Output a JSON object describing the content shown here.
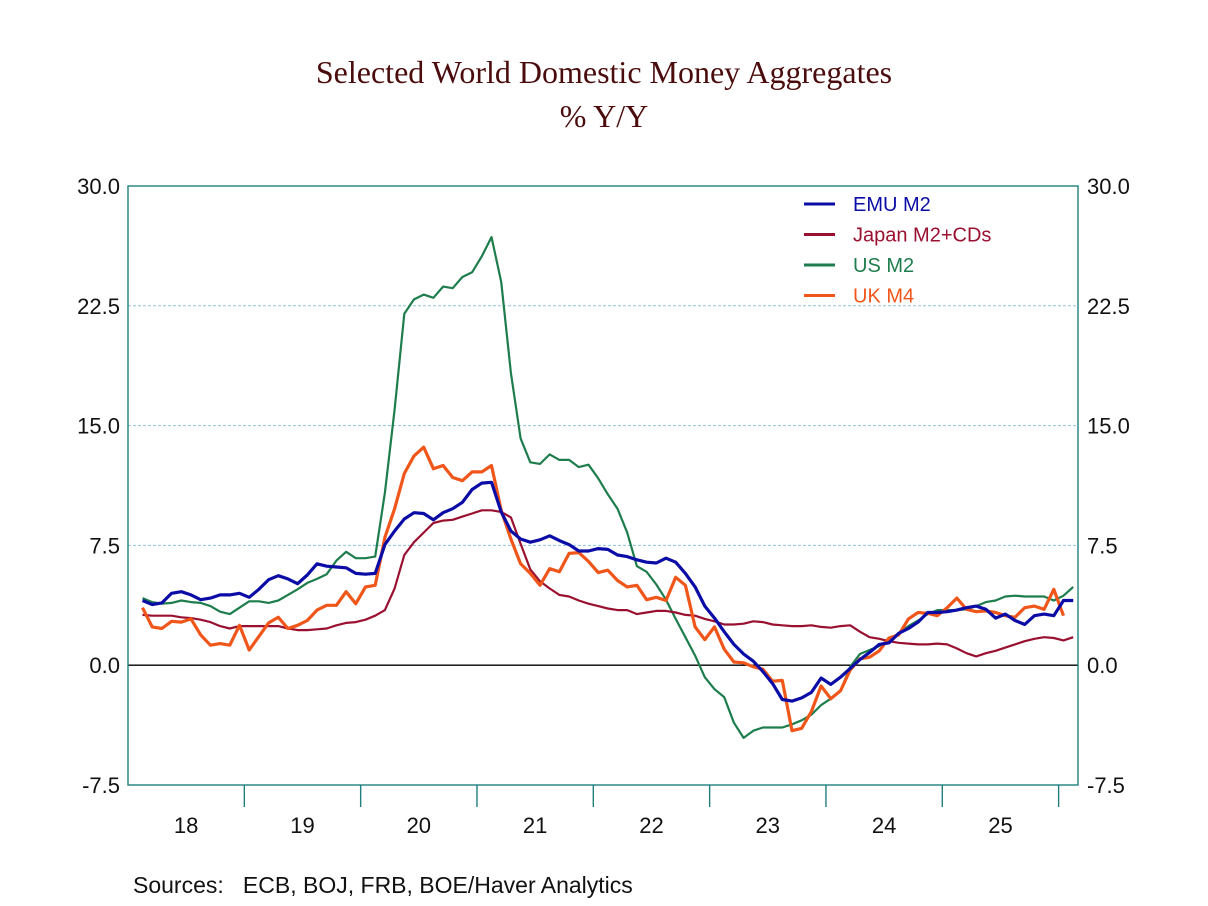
{
  "chart_data": {
    "type": "line",
    "title": "Selected World Domestic Money Aggregates",
    "subtitle": "% Y/Y",
    "xlabel": "",
    "ylabel": "",
    "frequency": "monthly",
    "x_start": "2018-02",
    "x_range": [
      "2018-01",
      "2026-02"
    ],
    "x_tick_labels": [
      "18",
      "19",
      "20",
      "21",
      "22",
      "23",
      "24",
      "25"
    ],
    "ylim": [
      -7.5,
      30.0
    ],
    "y_ticks": [
      "30.0",
      "22.5",
      "15.0",
      "7.5",
      "0.0",
      "-7.5"
    ],
    "y_axis_sides": "left and right",
    "grid": "horizontal dashed",
    "legend_position": "top-right",
    "source": "Sources:   ECB, BOJ, FRB, BOE/Haver Analytics",
    "series": [
      {
        "name": "EMU M2",
        "color": "#0b0ca6",
        "values": [
          4.05,
          3.8,
          3.9,
          4.5,
          4.6,
          4.4,
          4.1,
          4.2,
          4.4,
          4.4,
          4.5,
          4.25,
          4.75,
          5.35,
          5.6,
          5.4,
          5.1,
          5.65,
          6.35,
          6.2,
          6.15,
          6.1,
          5.75,
          5.7,
          5.75,
          7.55,
          8.4,
          9.15,
          9.55,
          9.5,
          9.1,
          9.55,
          9.8,
          10.2,
          11.0,
          11.4,
          11.45,
          9.6,
          8.4,
          7.9,
          7.7,
          7.85,
          8.1,
          7.8,
          7.55,
          7.15,
          7.15,
          7.3,
          7.25,
          6.9,
          6.8,
          6.6,
          6.45,
          6.4,
          6.7,
          6.45,
          5.75,
          4.9,
          3.7,
          2.95,
          2.1,
          1.3,
          0.7,
          0.25,
          -0.4,
          -1.15,
          -2.15,
          -2.25,
          -2.05,
          -1.7,
          -0.8,
          -1.2,
          -0.75,
          -0.2,
          0.35,
          0.8,
          1.3,
          1.4,
          2.0,
          2.3,
          2.7,
          3.3,
          3.3,
          3.35,
          3.45,
          3.6,
          3.7,
          3.5,
          2.95,
          3.2,
          2.8,
          2.55,
          3.1,
          3.2,
          3.1,
          4.05,
          4.05
        ]
      },
      {
        "name": "Japan M2+CDs",
        "color": "#9a1030",
        "values": [
          3.15,
          3.1,
          3.1,
          3.1,
          3.0,
          2.95,
          2.85,
          2.7,
          2.45,
          2.3,
          2.45,
          2.45,
          2.45,
          2.45,
          2.45,
          2.3,
          2.2,
          2.2,
          2.25,
          2.3,
          2.5,
          2.65,
          2.7,
          2.85,
          3.1,
          3.45,
          4.8,
          6.9,
          7.7,
          8.3,
          8.9,
          9.05,
          9.1,
          9.3,
          9.5,
          9.7,
          9.7,
          9.6,
          9.25,
          7.6,
          6.0,
          5.25,
          4.8,
          4.4,
          4.3,
          4.05,
          3.85,
          3.7,
          3.55,
          3.45,
          3.45,
          3.2,
          3.3,
          3.4,
          3.4,
          3.3,
          3.15,
          3.1,
          2.9,
          2.75,
          2.55,
          2.55,
          2.6,
          2.75,
          2.7,
          2.55,
          2.5,
          2.45,
          2.45,
          2.5,
          2.4,
          2.35,
          2.45,
          2.5,
          2.1,
          1.75,
          1.65,
          1.5,
          1.4,
          1.35,
          1.3,
          1.3,
          1.35,
          1.3,
          1.05,
          0.75,
          0.55,
          0.75,
          0.9,
          1.1,
          1.3,
          1.5,
          1.65,
          1.75,
          1.7,
          1.55,
          1.75
        ]
      },
      {
        "name": "US M2",
        "color": "#1e7d4c",
        "values": [
          4.2,
          3.95,
          3.85,
          3.9,
          4.05,
          3.95,
          3.9,
          3.7,
          3.35,
          3.2,
          3.6,
          4.0,
          4.0,
          3.9,
          4.05,
          4.4,
          4.75,
          5.15,
          5.4,
          5.7,
          6.55,
          7.1,
          6.7,
          6.7,
          6.8,
          10.8,
          16.0,
          22.0,
          22.9,
          23.2,
          23.0,
          23.7,
          23.6,
          24.3,
          24.6,
          25.6,
          26.8,
          24.0,
          18.3,
          14.2,
          12.7,
          12.6,
          13.2,
          12.85,
          12.85,
          12.4,
          12.55,
          11.7,
          10.7,
          9.8,
          8.3,
          6.2,
          5.85,
          5.05,
          4.1,
          2.9,
          1.75,
          0.6,
          -0.75,
          -1.5,
          -2.0,
          -3.6,
          -4.55,
          -4.1,
          -3.9,
          -3.9,
          -3.9,
          -3.7,
          -3.45,
          -3.1,
          -2.5,
          -2.1,
          -1.6,
          -0.1,
          0.7,
          0.95,
          1.2,
          1.6,
          2.0,
          2.45,
          2.8,
          3.2,
          3.45,
          3.45,
          3.45,
          3.5,
          3.7,
          3.95,
          4.05,
          4.3,
          4.35,
          4.3,
          4.3,
          4.3,
          4.05,
          4.35,
          4.9
        ]
      },
      {
        "name": "UK M4",
        "color": "#f0561a",
        "values": [
          3.6,
          2.4,
          2.3,
          2.75,
          2.7,
          2.9,
          1.9,
          1.25,
          1.35,
          1.25,
          2.5,
          0.95,
          1.8,
          2.65,
          3.0,
          2.3,
          2.5,
          2.8,
          3.45,
          3.75,
          3.75,
          4.6,
          3.85,
          4.9,
          5.0,
          8.0,
          9.8,
          12.0,
          13.1,
          13.65,
          12.3,
          12.5,
          11.75,
          11.55,
          12.1,
          12.1,
          12.5,
          9.7,
          7.9,
          6.35,
          5.75,
          5.0,
          6.05,
          5.85,
          7.0,
          7.05,
          6.5,
          5.8,
          5.95,
          5.3,
          4.9,
          5.0,
          4.1,
          4.25,
          4.05,
          5.5,
          5.0,
          2.4,
          1.6,
          2.4,
          1.0,
          0.2,
          0.15,
          -0.1,
          -0.25,
          -1.0,
          -0.95,
          -4.1,
          -3.95,
          -2.9,
          -1.3,
          -2.1,
          -1.6,
          -0.3,
          0.4,
          0.5,
          0.9,
          1.7,
          1.9,
          2.9,
          3.3,
          3.25,
          3.1,
          3.6,
          4.2,
          3.5,
          3.35,
          3.4,
          3.3,
          3.1,
          3.0,
          3.6,
          3.7,
          3.5,
          4.75,
          3.1
        ]
      }
    ]
  }
}
